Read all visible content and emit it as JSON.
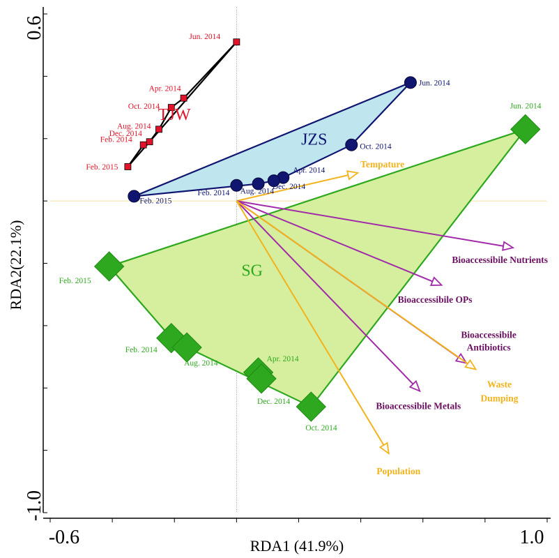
{
  "chart_data": {
    "type": "scatter",
    "xlabel": "RDA1 (41.9%)",
    "ylabel": "RDA2(22.1%)",
    "xlim": [
      -0.6,
      1.0
    ],
    "ylim": [
      -1.0,
      0.6
    ],
    "x_tick_labels": [
      "-0.6",
      "1.0"
    ],
    "y_tick_labels": [
      "0.6",
      "-1.0"
    ],
    "groups": [
      {
        "name": "TJW",
        "marker": "square",
        "color": "#e0142a",
        "fill": "none",
        "points": [
          {
            "label": "Jun. 2014",
            "x": 0.0,
            "y": 0.51
          },
          {
            "label": "Apr. 2014",
            "x": -0.17,
            "y": 0.33
          },
          {
            "label": "Oct. 2014",
            "x": -0.21,
            "y": 0.3
          },
          {
            "label": "Aug. 2014",
            "x": -0.25,
            "y": 0.23
          },
          {
            "label": "Dec. 2014",
            "x": -0.28,
            "y": 0.19
          },
          {
            "label": "Feb. 2014",
            "x": -0.3,
            "y": 0.18
          },
          {
            "label": "Feb. 2015",
            "x": -0.35,
            "y": 0.11
          }
        ]
      },
      {
        "name": "JZS",
        "marker": "circle",
        "color": "#101570",
        "fill": "#bfe5ef",
        "points": [
          {
            "label": "Jun. 2014",
            "x": 0.56,
            "y": 0.38
          },
          {
            "label": "Oct. 2014",
            "x": 0.37,
            "y": 0.18
          },
          {
            "label": "Apr. 2014",
            "x": 0.15,
            "y": 0.075
          },
          {
            "label": "Dec. 2014",
            "x": 0.12,
            "y": 0.065
          },
          {
            "label": "Aug. 2014",
            "x": 0.07,
            "y": 0.055
          },
          {
            "label": "Feb. 2014",
            "x": 0.0,
            "y": 0.05
          },
          {
            "label": "Feb. 2015",
            "x": -0.33,
            "y": 0.015
          }
        ]
      },
      {
        "name": "SG",
        "marker": "diamond",
        "color": "#2ea81f",
        "fill": "#d6ef9e",
        "points": [
          {
            "label": "Jun. 2014",
            "x": 0.93,
            "y": 0.23
          },
          {
            "label": "Feb. 2015",
            "x": -0.41,
            "y": -0.21
          },
          {
            "label": "Feb. 2014",
            "x": -0.21,
            "y": -0.44
          },
          {
            "label": "Aug. 2014",
            "x": -0.16,
            "y": -0.47
          },
          {
            "label": "Apr. 2014",
            "x": 0.07,
            "y": -0.55
          },
          {
            "label": "Dec. 2014",
            "x": 0.08,
            "y": -0.57
          },
          {
            "label": "Oct. 2014",
            "x": 0.24,
            "y": -0.66
          }
        ]
      }
    ],
    "arrows": [
      {
        "label": "Tempature",
        "x": 0.39,
        "y": 0.09,
        "color": "#f2b31c",
        "label_color": "#f2b31c"
      },
      {
        "label": "Bioaccessibile Nutrients",
        "x": 0.89,
        "y": -0.15,
        "color": "#a02aa8",
        "label_color": "#6b1060"
      },
      {
        "label": "Bioaccessibile OPs",
        "x": 0.66,
        "y": -0.27,
        "color": "#a02aa8",
        "label_color": "#6b1060"
      },
      {
        "label": "Bioaccessibile Antibiotics",
        "x": 0.74,
        "y": -0.52,
        "color": "#a02aa8",
        "label_color": "#6b1060"
      },
      {
        "label": "Bioaccessibile Metals",
        "x": 0.59,
        "y": -0.61,
        "color": "#a02aa8",
        "label_color": "#6b1060"
      },
      {
        "label": "Waste Dumping",
        "x": 0.77,
        "y": -0.54,
        "color": "#f2b31c",
        "label_color": "#f2b31c"
      },
      {
        "label": "Population",
        "x": 0.49,
        "y": -0.81,
        "color": "#f2b31c",
        "label_color": "#f2b31c"
      }
    ]
  }
}
